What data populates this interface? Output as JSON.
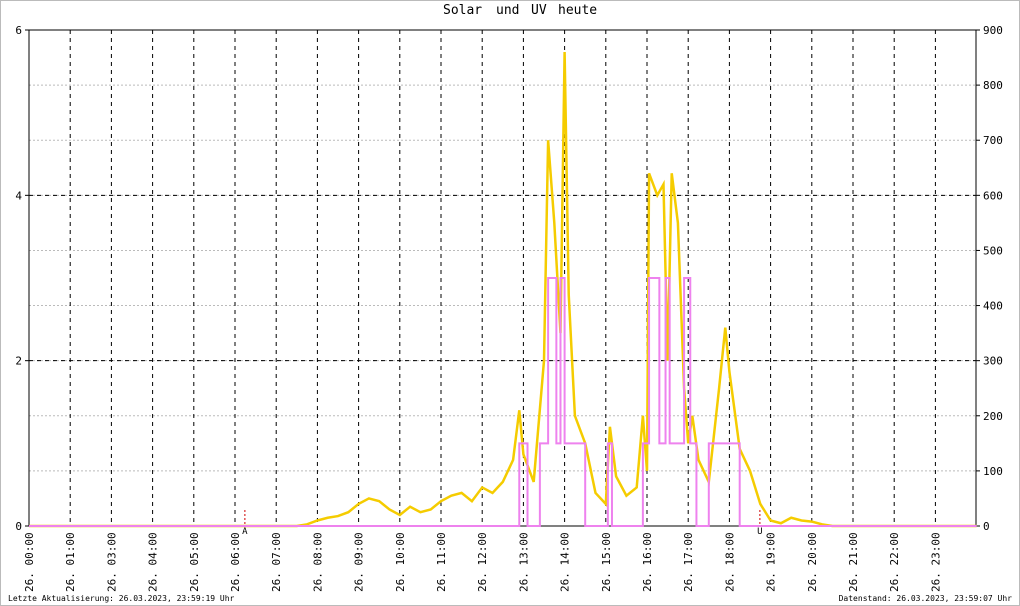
{
  "chart_data": {
    "type": "line",
    "title_words": [
      "Solar",
      "und",
      "UV",
      "heute"
    ],
    "xlim": [
      0,
      23
    ],
    "xticks": [
      {
        "value": 0,
        "label": "26. 00:00"
      },
      {
        "value": 1,
        "label": "26. 01:00"
      },
      {
        "value": 2,
        "label": "26. 03:00"
      },
      {
        "value": 3,
        "label": "26. 04:00"
      },
      {
        "value": 4,
        "label": "26. 05:00"
      },
      {
        "value": 5,
        "label": "26. 06:00"
      },
      {
        "value": 6,
        "label": "26. 07:00"
      },
      {
        "value": 7,
        "label": "26. 08:00"
      },
      {
        "value": 8,
        "label": "26. 09:00"
      },
      {
        "value": 9,
        "label": "26. 10:00"
      },
      {
        "value": 10,
        "label": "26. 11:00"
      },
      {
        "value": 11,
        "label": "26. 12:00"
      },
      {
        "value": 12,
        "label": "26. 13:00"
      },
      {
        "value": 13,
        "label": "26. 14:00"
      },
      {
        "value": 14,
        "label": "26. 15:00"
      },
      {
        "value": 15,
        "label": "26. 16:00"
      },
      {
        "value": 16,
        "label": "26. 17:00"
      },
      {
        "value": 17,
        "label": "26. 18:00"
      },
      {
        "value": 18,
        "label": "26. 19:00"
      },
      {
        "value": 19,
        "label": "26. 20:00"
      },
      {
        "value": 20,
        "label": "26. 21:00"
      },
      {
        "value": 21,
        "label": "26. 22:00"
      },
      {
        "value": 22,
        "label": "26. 23:00"
      }
    ],
    "ylim": [
      0,
      6
    ],
    "yticks": [
      0,
      2,
      4,
      6
    ],
    "y2lim": [
      0,
      900
    ],
    "y2ticks": [
      0,
      100,
      200,
      300,
      400,
      500,
      600,
      700,
      800,
      900
    ],
    "grid": true,
    "series": [
      {
        "name": "Solar",
        "color": "#f5cc00",
        "axis": "y2",
        "step": false,
        "x": [
          0,
          6.5,
          6.75,
          7,
          7.25,
          7.5,
          7.75,
          8,
          8.25,
          8.5,
          8.75,
          9,
          9.25,
          9.5,
          9.75,
          10,
          10.25,
          10.5,
          10.75,
          11,
          11.25,
          11.5,
          11.75,
          11.9,
          12,
          12.25,
          12.5,
          12.6,
          12.75,
          12.9,
          13,
          13.1,
          13.25,
          13.5,
          13.75,
          14,
          14.1,
          14.25,
          14.5,
          14.75,
          14.9,
          15,
          15.05,
          15.25,
          15.4,
          15.5,
          15.6,
          15.75,
          15.9,
          16,
          16.1,
          16.25,
          16.5,
          16.75,
          16.9,
          17,
          17.25,
          17.5,
          17.75,
          18,
          18.25,
          18.5,
          18.75,
          19,
          19.25,
          19.5,
          23
        ],
        "values": [
          0,
          0,
          3,
          10,
          15,
          18,
          25,
          40,
          50,
          45,
          30,
          20,
          35,
          25,
          30,
          45,
          55,
          60,
          45,
          70,
          60,
          80,
          120,
          210,
          130,
          80,
          300,
          700,
          550,
          350,
          860,
          420,
          200,
          150,
          60,
          40,
          180,
          90,
          55,
          70,
          200,
          100,
          640,
          600,
          620,
          300,
          640,
          550,
          250,
          150,
          200,
          120,
          80,
          250,
          360,
          280,
          140,
          100,
          40,
          10,
          5,
          15,
          10,
          8,
          3,
          0,
          0
        ]
      },
      {
        "name": "UV",
        "color": "#ee82ee",
        "axis": "y",
        "step": true,
        "x": [
          0,
          11.9,
          12.1,
          12.4,
          12.6,
          12.8,
          12.9,
          13.0,
          13.1,
          13.5,
          14.05,
          14.15,
          14.9,
          15.05,
          15.3,
          15.45,
          15.55,
          15.9,
          16.05,
          16.2,
          16.5,
          16.6,
          17.25,
          23
        ],
        "values": [
          0,
          1,
          0,
          1,
          3,
          1,
          3,
          1,
          1,
          0,
          1,
          0,
          1,
          3,
          1,
          3,
          1,
          3,
          1,
          0,
          1,
          1,
          0,
          0
        ]
      }
    ],
    "annotations": [
      {
        "text": "A",
        "x": 5.24,
        "color": "#d00000"
      },
      {
        "text": "U",
        "x": 17.74,
        "color": "#d00000"
      }
    ],
    "footer_left": "Letzte Aktualisierung: 26.03.2023, 23:59:19 Uhr",
    "footer_right": "Datenstand: 26.03.2023, 23:59:07 Uhr"
  }
}
